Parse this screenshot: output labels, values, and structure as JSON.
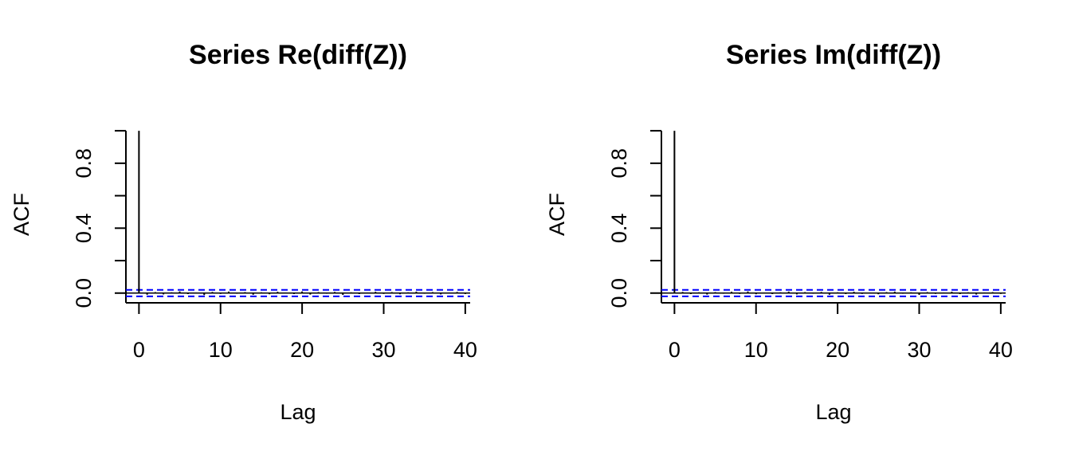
{
  "chart_data": [
    {
      "type": "bar",
      "title": "Series  Re(diff(Z))",
      "xlabel": "Lag",
      "ylabel": "ACF",
      "xlim": [
        -1.6,
        40.6
      ],
      "ylim": [
        -0.06,
        1.03
      ],
      "x_ticks": [
        "0",
        "10",
        "20",
        "30",
        "40"
      ],
      "y_ticks": [
        "0.0",
        "0.4",
        "0.8"
      ],
      "confidence_bound": 0.02,
      "confidence_color": "#0000FF",
      "lags": [
        0,
        1,
        2,
        3,
        4,
        5,
        6,
        7,
        8,
        9,
        10,
        11,
        12,
        13,
        14,
        15,
        16,
        17,
        18,
        19,
        20,
        21,
        22,
        23,
        24,
        25,
        26,
        27,
        28,
        29,
        30,
        31,
        32,
        33,
        34,
        35,
        36,
        37,
        38,
        39,
        40
      ],
      "acf": [
        1.0,
        -0.01,
        0.006,
        -0.008,
        0.005,
        0.01,
        -0.006,
        0.004,
        -0.012,
        0.007,
        -0.005,
        0.009,
        -0.004,
        0.006,
        -0.01,
        0.005,
        -0.007,
        0.008,
        0.004,
        -0.006,
        0.01,
        -0.009,
        0.006,
        -0.004,
        0.007,
        -0.011,
        0.005,
        -0.006,
        0.004,
        0.008,
        -0.005,
        0.006,
        -0.007,
        0.005,
        0.009,
        -0.004,
        0.006,
        -0.008,
        0.004,
        0.007,
        -0.006
      ]
    },
    {
      "type": "bar",
      "title": "Series  Im(diff(Z))",
      "xlabel": "Lag",
      "ylabel": "ACF",
      "xlim": [
        -1.6,
        40.6
      ],
      "ylim": [
        -0.06,
        1.03
      ],
      "x_ticks": [
        "0",
        "10",
        "20",
        "30",
        "40"
      ],
      "y_ticks": [
        "0.0",
        "0.4",
        "0.8"
      ],
      "confidence_bound": 0.02,
      "confidence_color": "#0000FF",
      "lags": [
        0,
        1,
        2,
        3,
        4,
        5,
        6,
        7,
        8,
        9,
        10,
        11,
        12,
        13,
        14,
        15,
        16,
        17,
        18,
        19,
        20,
        21,
        22,
        23,
        24,
        25,
        26,
        27,
        28,
        29,
        30,
        31,
        32,
        33,
        34,
        35,
        36,
        37,
        38,
        39,
        40
      ],
      "acf": [
        1.0,
        0.007,
        -0.006,
        0.005,
        -0.009,
        0.006,
        -0.004,
        0.008,
        -0.005,
        0.01,
        -0.007,
        0.004,
        -0.006,
        0.005,
        0.009,
        -0.008,
        0.006,
        -0.004,
        0.007,
        -0.01,
        0.005,
        -0.006,
        0.008,
        -0.005,
        0.004,
        -0.007,
        0.006,
        0.009,
        -0.004,
        0.005,
        -0.011,
        0.006,
        -0.005,
        0.004,
        0.008,
        -0.006,
        0.005,
        -0.009,
        0.004,
        0.006,
        -0.005
      ]
    }
  ]
}
